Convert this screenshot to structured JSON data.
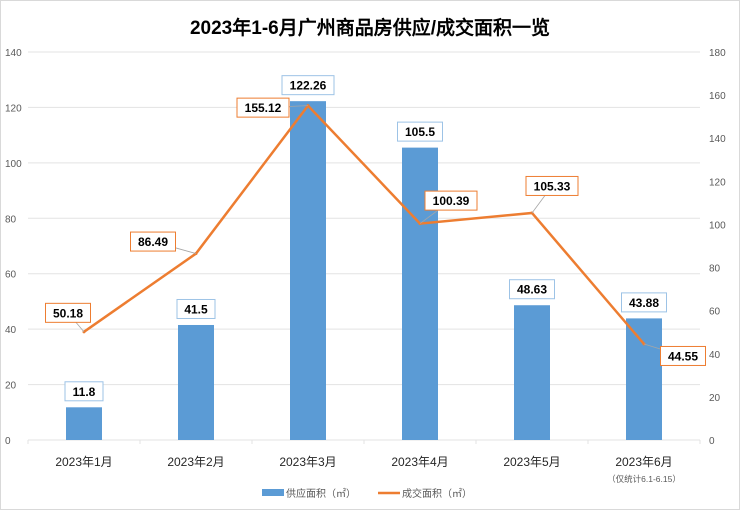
{
  "chart_data": {
    "type": "bar+line",
    "title": "2023年1-6月广州商品房供应/成交面积一览",
    "categories": [
      "2023年1月",
      "2023年2月",
      "2023年3月",
      "2023年4月",
      "2023年5月",
      "2023年6月"
    ],
    "category_note": "（仅统计6.1-6.15）",
    "series": [
      {
        "name": "供应面积（㎡）",
        "type": "bar",
        "axis": "left",
        "color": "#5b9bd5",
        "values": [
          11.8,
          41.5,
          122.26,
          105.5,
          48.63,
          43.88
        ],
        "labels": [
          "11.8",
          "41.5",
          "122.26",
          "105.5",
          "48.63",
          "43.88"
        ]
      },
      {
        "name": "成交面积（㎡）",
        "type": "line",
        "axis": "right",
        "color": "#ed7d31",
        "values": [
          50.18,
          86.49,
          155.12,
          100.39,
          105.33,
          44.55
        ],
        "labels": [
          "50.18",
          "86.49",
          "155.12",
          "100.39",
          "105.33",
          "44.55"
        ]
      }
    ],
    "y_left": {
      "min": 0,
      "max": 140,
      "step": 20,
      "ticks": [
        "0",
        "20",
        "40",
        "60",
        "80",
        "100",
        "120",
        "140"
      ]
    },
    "y_right": {
      "min": 0,
      "max": 180,
      "step": 20,
      "ticks": [
        "0",
        "20",
        "40",
        "60",
        "80",
        "100",
        "120",
        "140",
        "160",
        "180"
      ]
    },
    "grid": true,
    "legend": "bottom"
  }
}
